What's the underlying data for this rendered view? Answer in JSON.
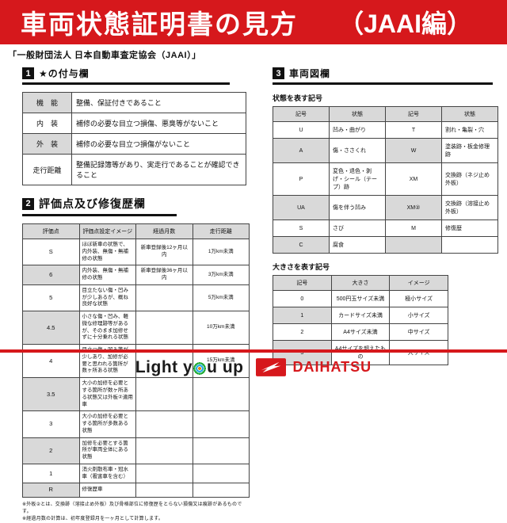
{
  "colors": {
    "banner_red": "#d6181c",
    "table_header_gray": "#d9d9d9",
    "text_black": "#111111"
  },
  "header": {
    "title": "車両状態証明書の見方",
    "edition": "（JAAI編）"
  },
  "subtitle": "「一般財団法人 日本自動車査定協会（JAAI）」",
  "section1": {
    "num": "1",
    "title": "★の付与欄",
    "rows": [
      [
        "機　能",
        "整備、保証付きであること"
      ],
      [
        "内　装",
        "補修の必要な目立つ損傷、悪臭等がないこと"
      ],
      [
        "外　装",
        "補修の必要な目立つ損傷がないこと"
      ],
      [
        "走行距離",
        "整備記録簿等があり、実走行であることが確認できること"
      ]
    ]
  },
  "section2": {
    "num": "2",
    "title": "評価点及び修復歴欄",
    "headers": [
      "評価点",
      "評価点設定イメージ",
      "経過月数",
      "走行距離"
    ],
    "rows": [
      [
        "S",
        "ほぼ新車の状態で、内外装、無傷・無補修の状態",
        "新車登録後12ヶ月以内",
        "1万km未満"
      ],
      [
        "6",
        "内外装、無傷・無補修の状態",
        "新車登録後36ヶ月以内",
        "3万km未満"
      ],
      [
        "5",
        "目立たない傷・凹みが少しあるが、概ね良好な状態",
        "",
        "5万km未満"
      ],
      [
        "4.5",
        "小さな傷・凹み、軽微な修理跡等があるが、そのまま加修せずに十分乗れる状態",
        "",
        "10万km未満"
      ],
      [
        "4",
        "目立つ傷・凹み等が少しあり、加修が必要と思われる箇所が数ヶ所ある状態",
        "",
        "15万km未満"
      ],
      [
        "3.5",
        "大小の加修を必要とする箇所が数ヶ所ある状態又は外板②適用車",
        "",
        ""
      ],
      [
        "3",
        "大小の加修を必要とする箇所が多数ある状態",
        "",
        ""
      ],
      [
        "2",
        "加修を必要とする箇所が車両全体にある状態",
        "",
        ""
      ],
      [
        "1",
        "消火剤散布車・冠水車（雹害車を含む）",
        "",
        ""
      ],
      [
        "R",
        "修復歴車",
        "",
        ""
      ]
    ],
    "notes": [
      "※外板②とは、交換跡（溶接止め外板）及び骨格部位に修復歴をとらない損傷又は痕跡があるものです。",
      "※経過月数の計算は、初年度登録月を一ヶ月として計算します。"
    ]
  },
  "section3": {
    "num": "3",
    "title": "車両図欄",
    "state_table": {
      "caption": "状態を表す記号",
      "headers": [
        "記号",
        "状態",
        "記号",
        "状態"
      ],
      "rows": [
        [
          "U",
          "凹み・曲がり",
          "T",
          "割れ・亀裂・穴"
        ],
        [
          "A",
          "傷・ささくれ",
          "W",
          "塗装跡・板金修理跡"
        ],
        [
          "P",
          "変色・退色・剥げ・シール（テープ）跡",
          "XM",
          "交換跡（ネジ止め外板）"
        ],
        [
          "UA",
          "傷を伴う凹み",
          "XM②",
          "交換跡（溶接止め外板）"
        ],
        [
          "S",
          "さび",
          "M",
          "修復歴"
        ],
        [
          "C",
          "腐食",
          "",
          ""
        ]
      ]
    },
    "size_table": {
      "caption": "大きさを表す記号",
      "headers": [
        "記号",
        "大きさ",
        "イメージ"
      ],
      "rows": [
        [
          "0",
          "500円玉サイズ未満",
          "極小サイズ"
        ],
        [
          "1",
          "カードサイズ未満",
          "小サイズ"
        ],
        [
          "2",
          "A4サイズ未満",
          "中サイズ"
        ],
        [
          "3",
          "A4サイズを超えたもの",
          "大サイズ"
        ]
      ]
    }
  },
  "footer": {
    "slogan_pre": "Light y",
    "slogan_post": "u up",
    "brand": "DAIHATSU"
  }
}
